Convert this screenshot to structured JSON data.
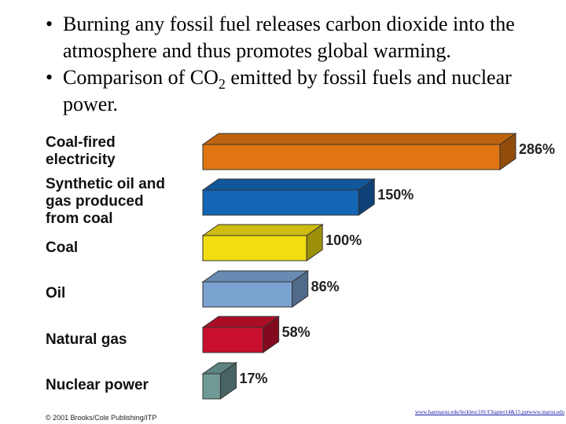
{
  "bullets": [
    {
      "text": "Burning any fossil fuel releases carbon dioxide into the atmosphere and thus promotes global warming."
    },
    {
      "pre": "Comparison of CO",
      "sub": "2",
      "post": " emitted by fossil fuels and nuclear power."
    }
  ],
  "bullet_symbol": "•",
  "chart_data": {
    "type": "bar",
    "orientation": "horizontal",
    "style": "3d",
    "categories": [
      "Coal-fired electricity",
      "Synthetic oil and gas produced from coal",
      "Coal",
      "Oil",
      "Natural gas",
      "Nuclear power"
    ],
    "category_lines": [
      [
        "Coal-fired",
        "electricity"
      ],
      [
        "Synthetic oil and",
        "gas produced",
        "from coal"
      ],
      [
        "Coal"
      ],
      [
        "Oil"
      ],
      [
        "Natural gas"
      ],
      [
        "Nuclear power"
      ]
    ],
    "values": [
      286,
      150,
      100,
      86,
      58,
      17
    ],
    "value_labels": [
      "286%",
      "150%",
      "100%",
      "86%",
      "58%",
      "17%"
    ],
    "unit": "%",
    "xlim": [
      0,
      286
    ],
    "colors": [
      "#e07512",
      "#1565b5",
      "#f2dd10",
      "#7ba3d2",
      "#c8102e",
      "#6f9a96"
    ],
    "grid": false,
    "legend": "none"
  },
  "credit": "© 2001 Brooks/Cole Publishing/ITP",
  "link_text": "www.hanmarsu.edu/lecklesc101/Chapter14&15.pptwww.marsu.edu/leck/esc101/Chapter14&15.ppt"
}
